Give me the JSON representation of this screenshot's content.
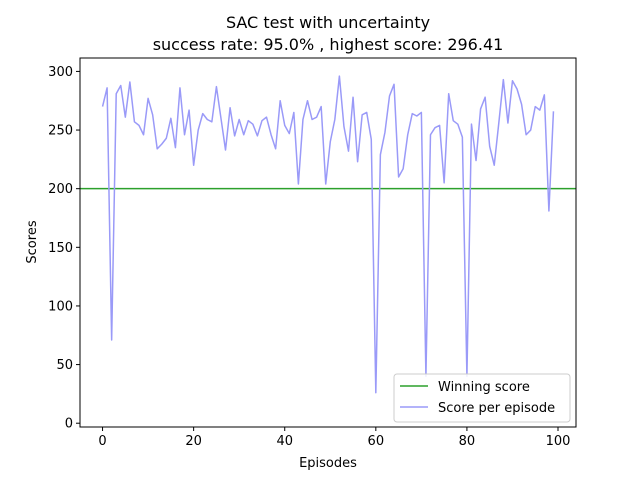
{
  "chart_data": {
    "type": "line",
    "title_line1": "SAC test with uncertainty",
    "title_line2": "success rate: 95.0% , highest score: 296.41",
    "xlabel": "Episodes",
    "ylabel": "Scores",
    "xlim": [
      -4.95,
      103.95
    ],
    "ylim": [
      -3.23,
      311.44
    ],
    "xticks": [
      0,
      20,
      40,
      60,
      80,
      100
    ],
    "yticks": [
      0,
      50,
      100,
      150,
      200,
      250,
      300
    ],
    "grid": false,
    "legend_position": "lower-right",
    "series": [
      {
        "name": "Score per episode",
        "color": "#9a9af8",
        "values": [
          270,
          286,
          71,
          281,
          288,
          261,
          291,
          257,
          254,
          246,
          277,
          263,
          234,
          238,
          243,
          260,
          235,
          286,
          246,
          267,
          220,
          250,
          264,
          259,
          257,
          287,
          260,
          233,
          269,
          245,
          259,
          246,
          258,
          255,
          245,
          258,
          261,
          246,
          234,
          275,
          254,
          247,
          265,
          204,
          259,
          275,
          259,
          261,
          270,
          204,
          240,
          259,
          296,
          253,
          232,
          278,
          223,
          263,
          265,
          242,
          26,
          229,
          248,
          279,
          289,
          210,
          217,
          246,
          264,
          262,
          265,
          40,
          246,
          252,
          254,
          205,
          281,
          258,
          255,
          244,
          40,
          255,
          224,
          268,
          278,
          236,
          220,
          256,
          293,
          256,
          292,
          285,
          272,
          246,
          250,
          270,
          267,
          280,
          181,
          266
        ]
      },
      {
        "name": "Winning score",
        "color": "#2ca02c",
        "constant": 200
      }
    ]
  }
}
